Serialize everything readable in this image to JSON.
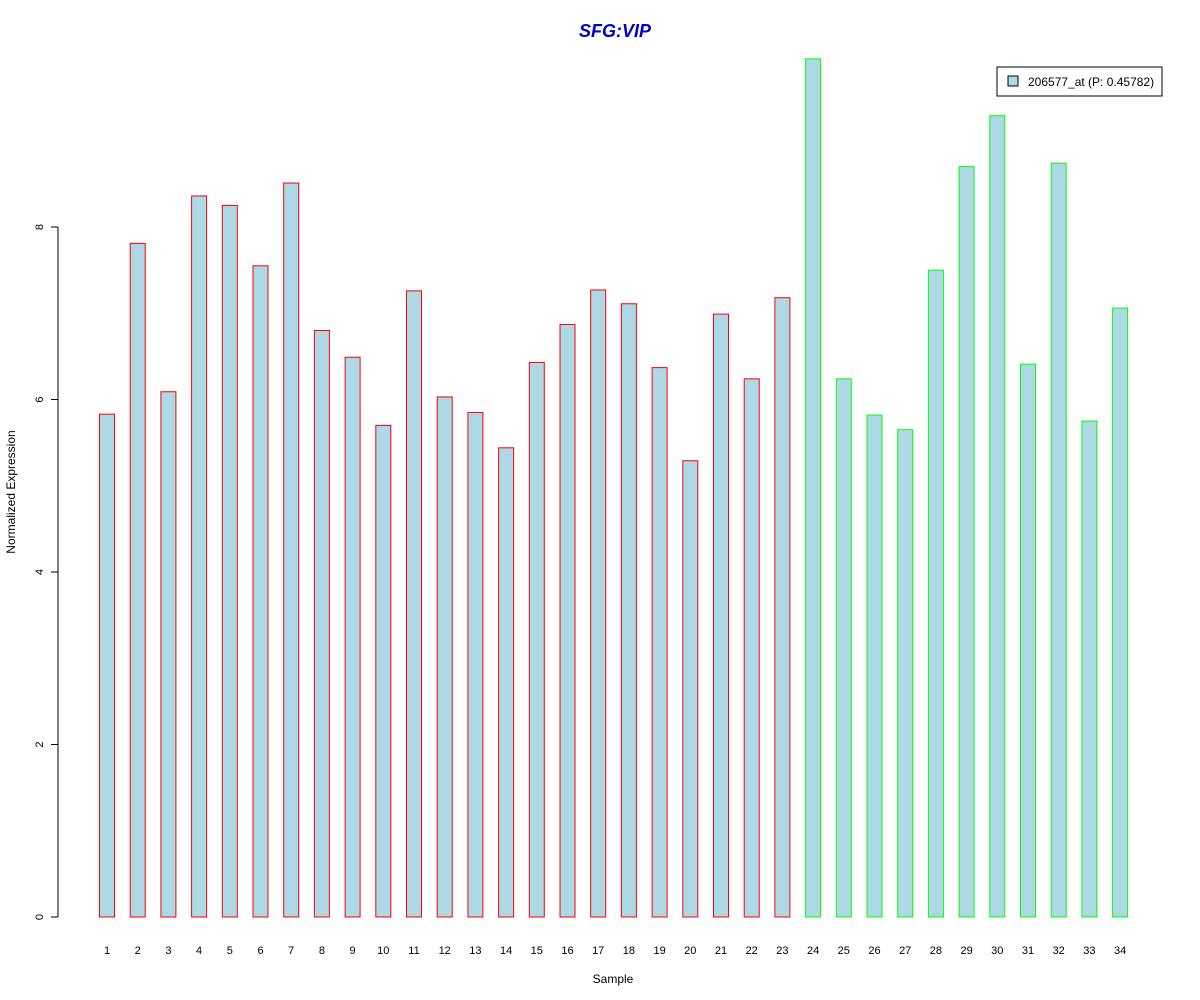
{
  "chart_data": {
    "type": "bar",
    "title": "SFG:VIP",
    "title_color": "#0000cc",
    "xlabel": "Sample",
    "ylabel": "Normalized Expression",
    "ylim": [
      0,
      10
    ],
    "yticks": [
      "0",
      "2",
      "4",
      "6",
      "8"
    ],
    "grid": false,
    "legend_position": "top-right",
    "categories": [
      "1",
      "2",
      "3",
      "4",
      "5",
      "6",
      "7",
      "8",
      "9",
      "10",
      "11",
      "12",
      "13",
      "14",
      "15",
      "16",
      "17",
      "18",
      "19",
      "20",
      "21",
      "22",
      "23",
      "24",
      "25",
      "26",
      "27",
      "28",
      "29",
      "30",
      "31",
      "32",
      "33",
      "34"
    ],
    "series": [
      {
        "name": "206577_at (P: 0.45782)",
        "fill_color": "#add8e6",
        "values": [
          5.83,
          7.81,
          6.09,
          8.36,
          8.25,
          7.55,
          8.51,
          6.8,
          6.49,
          5.7,
          7.26,
          6.03,
          5.85,
          5.44,
          6.43,
          6.87,
          7.27,
          7.11,
          6.37,
          5.29,
          6.99,
          6.24,
          7.18,
          9.95,
          6.24,
          5.82,
          5.65,
          7.5,
          8.7,
          9.29,
          6.41,
          8.74,
          5.75,
          7.06
        ],
        "outline_colors": [
          "#ff0000",
          "#ff0000",
          "#ff0000",
          "#ff0000",
          "#ff0000",
          "#ff0000",
          "#ff0000",
          "#ff0000",
          "#ff0000",
          "#ff0000",
          "#ff0000",
          "#ff0000",
          "#ff0000",
          "#ff0000",
          "#ff0000",
          "#ff0000",
          "#ff0000",
          "#ff0000",
          "#ff0000",
          "#ff0000",
          "#ff0000",
          "#ff0000",
          "#ff0000",
          "#00ff00",
          "#00ff00",
          "#00ff00",
          "#00ff00",
          "#00ff00",
          "#00ff00",
          "#00ff00",
          "#00ff00",
          "#00ff00",
          "#00ff00",
          "#00ff00"
        ]
      }
    ]
  }
}
